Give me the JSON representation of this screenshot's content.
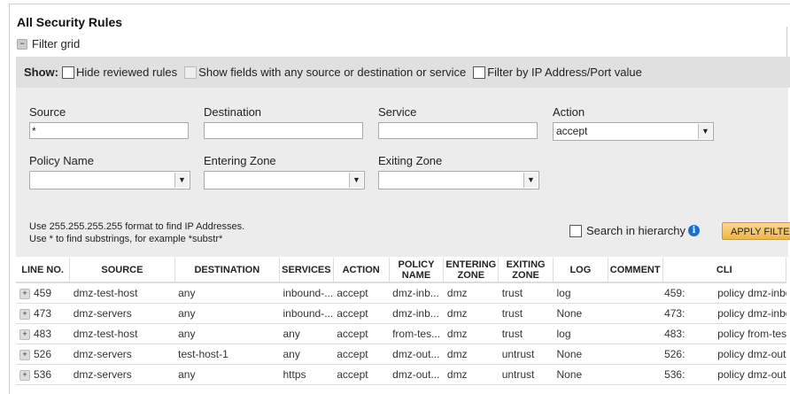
{
  "title": "All Security Rules",
  "filter_grid_label": "Filter grid",
  "show": {
    "label": "Show:",
    "hide_reviewed": "Hide reviewed rules",
    "show_any": "Show fields with any source or destination or service",
    "filter_ip": "Filter by IP Address/Port value"
  },
  "fields": {
    "source_label": "Source",
    "source_value": "*",
    "destination_label": "Destination",
    "destination_value": "",
    "service_label": "Service",
    "service_value": "",
    "action_label": "Action",
    "action_value": "accept",
    "policy_label": "Policy Name",
    "entering_label": "Entering Zone",
    "exiting_label": "Exiting Zone"
  },
  "hints": {
    "line1": "Use 255.255.255.255 format to find IP Addresses.",
    "line2": "Use * to find substrings, for example *substr*"
  },
  "search_hierarchy": "Search in hierarchy",
  "apply_label": "APPLY FILTER",
  "columns": [
    "LINE NO.",
    "SOURCE",
    "DESTINATION",
    "SERVICES",
    "ACTION",
    "POLICY NAME",
    "ENTERING ZONE",
    "EXITING ZONE",
    "LOG",
    "COMMENT",
    "CLI"
  ],
  "rows": [
    {
      "line": "459",
      "source": "dmz-test-host",
      "destination": "any",
      "services": "inbound-...",
      "action": "accept",
      "policy": "dmz-inb...",
      "entering": "dmz",
      "exiting": "trust",
      "log": "log",
      "comment": "",
      "cli_no": "459:",
      "cli": "policy dmz-inbound {"
    },
    {
      "line": "473",
      "source": "dmz-servers",
      "destination": "any",
      "services": "inbound-...",
      "action": "accept",
      "policy": "dmz-inb...",
      "entering": "dmz",
      "exiting": "trust",
      "log": "None",
      "comment": "",
      "cli_no": "473:",
      "cli": "policy dmz-inboun..."
    },
    {
      "line": "483",
      "source": "dmz-test-host",
      "destination": "any",
      "services": "any",
      "action": "accept",
      "policy": "from-tes...",
      "entering": "dmz",
      "exiting": "trust",
      "log": "log",
      "comment": "",
      "cli_no": "483:",
      "cli": "policy from-test-ho..."
    },
    {
      "line": "526",
      "source": "dmz-servers",
      "destination": "test-host-1",
      "services": "any",
      "action": "accept",
      "policy": "dmz-out...",
      "entering": "dmz",
      "exiting": "untrust",
      "log": "None",
      "comment": "",
      "cli_no": "526:",
      "cli": "policy dmz-outbou..."
    },
    {
      "line": "536",
      "source": "dmz-servers",
      "destination": "any",
      "services": "https",
      "action": "accept",
      "policy": "dmz-out...",
      "entering": "dmz",
      "exiting": "untrust",
      "log": "None",
      "comment": "",
      "cli_no": "536:",
      "cli": "policy dmz-outbou..."
    }
  ]
}
